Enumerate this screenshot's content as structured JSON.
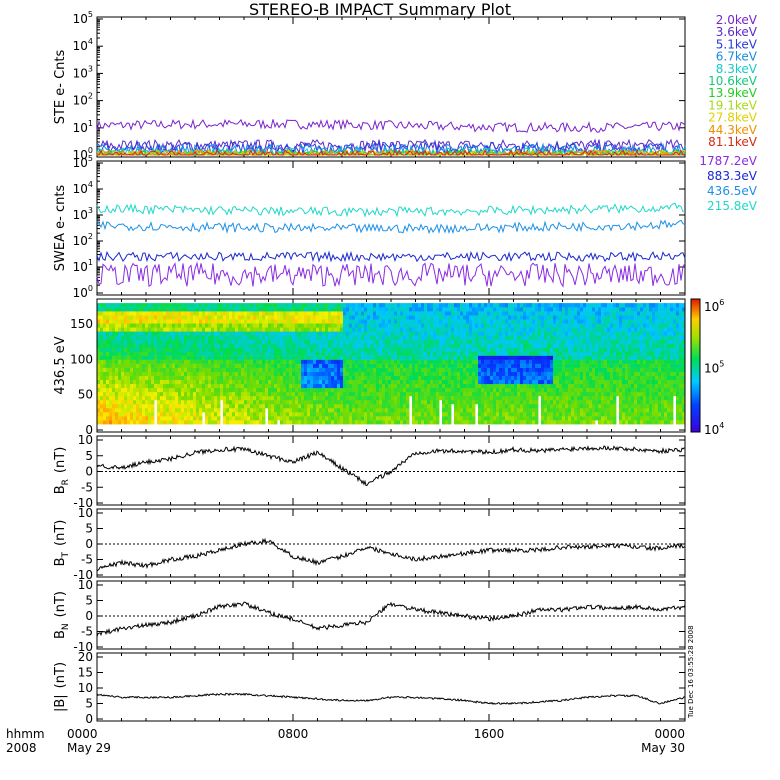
{
  "title": "STEREO-B IMPACT Summary Plot",
  "footer": {
    "unit_label": "hhmm",
    "year": "2008",
    "ticks": [
      {
        "time": "0000",
        "date": "May 29"
      },
      {
        "time": "0800",
        "date": ""
      },
      {
        "time": "1600",
        "date": ""
      },
      {
        "time": "0000",
        "date": "May 30"
      }
    ],
    "timestamp": "Tue Dec 16 03:55:28 2008"
  },
  "chart_data": [
    {
      "type": "line",
      "id": "ste",
      "ylabel": "STE e- Cnts",
      "yscale": "log",
      "ylim": [
        1,
        100000
      ],
      "yticks": [
        {
          "exp": "0"
        },
        {
          "exp": "1"
        },
        {
          "exp": "2"
        },
        {
          "exp": "3"
        },
        {
          "exp": "4"
        },
        {
          "exp": "5"
        }
      ],
      "series": [
        {
          "name": "2.0keV",
          "color": "#7a22cc",
          "level": 12
        },
        {
          "name": "3.6keV",
          "color": "#5a2ac8",
          "level": 2.2
        },
        {
          "name": "5.1keV",
          "color": "#2a3ae0",
          "level": 1.8
        },
        {
          "name": "6.7keV",
          "color": "#1c8ae0",
          "level": 1.5
        },
        {
          "name": "8.3keV",
          "color": "#19c8c8",
          "level": 1.2
        },
        {
          "name": "10.6keV",
          "color": "#17c77e",
          "level": 1.0
        },
        {
          "name": "13.9keV",
          "color": "#22cc22",
          "level": 1.0
        },
        {
          "name": "19.1keV",
          "color": "#a8d815",
          "level": 1.0
        },
        {
          "name": "27.8keV",
          "color": "#e0d000",
          "level": 1.0
        },
        {
          "name": "44.3keV",
          "color": "#f09000",
          "level": 1.0
        },
        {
          "name": "81.1keV",
          "color": "#d42a18",
          "level": 1.0
        }
      ]
    },
    {
      "type": "line",
      "id": "swea",
      "ylabel": "SWEA e- cnts",
      "yscale": "log",
      "ylim": [
        1,
        100000
      ],
      "yticks": [
        {
          "exp": "0"
        },
        {
          "exp": "1"
        },
        {
          "exp": "2"
        },
        {
          "exp": "3"
        },
        {
          "exp": "4"
        },
        {
          "exp": "5"
        }
      ],
      "series": [
        {
          "name": "1787.2eV",
          "color": "#8a2be2",
          "level": 5
        },
        {
          "name": "883.3eV",
          "color": "#1a28cc",
          "level": 25
        },
        {
          "name": "436.5eV",
          "color": "#1e90e6",
          "level": 400
        },
        {
          "name": "215.8eV",
          "color": "#20d8c8",
          "level": 1800
        }
      ]
    },
    {
      "type": "heatmap",
      "id": "pad",
      "ylabel": "436.5 eV",
      "ylim": [
        0,
        180
      ],
      "yticks": [
        "0",
        "50",
        "100",
        "150"
      ],
      "colorbar": {
        "scale": "log",
        "range": [
          10000,
          1000000
        ],
        "labels": [
          {
            "exp": "4"
          },
          {
            "exp": "5"
          },
          {
            "exp": "6"
          }
        ]
      }
    },
    {
      "type": "line",
      "id": "br",
      "ylabel": "B",
      "ylabel_sub": "R",
      "ylabel_unit": "(nT)",
      "ylim": [
        -10,
        10
      ],
      "yticks": [
        "-10",
        "-5",
        "0",
        "5",
        "10"
      ],
      "x": [
        0,
        1,
        2,
        3,
        4,
        5,
        6,
        7,
        8,
        9,
        10,
        11,
        12,
        13,
        14,
        15,
        16,
        17,
        18,
        19,
        20,
        21,
        22,
        23,
        24
      ],
      "values": [
        2,
        1,
        3,
        4,
        6,
        7,
        7,
        5,
        3,
        6,
        1,
        -4,
        0,
        6,
        6.5,
        6.5,
        6,
        7,
        6.5,
        7,
        7.5,
        7.5,
        7,
        6.5,
        7
      ]
    },
    {
      "type": "line",
      "id": "bt",
      "ylabel": "B",
      "ylabel_sub": "T",
      "ylabel_unit": "(nT)",
      "ylim": [
        -10,
        10
      ],
      "yticks": [
        "-10",
        "-5",
        "0",
        "5",
        "10"
      ],
      "x": [
        0,
        1,
        2,
        3,
        4,
        5,
        6,
        7,
        8,
        9,
        10,
        11,
        12,
        13,
        14,
        15,
        16,
        17,
        18,
        19,
        20,
        21,
        22,
        23,
        24
      ],
      "values": [
        -8,
        -6,
        -7,
        -5,
        -4,
        -2,
        0,
        1,
        -4,
        -6,
        -4,
        -1,
        -3,
        -5,
        -4,
        -3,
        -2,
        -2,
        -2,
        -1,
        -1,
        -0.5,
        -1,
        -1.5,
        -0.5
      ]
    },
    {
      "type": "line",
      "id": "bn",
      "ylabel": "B",
      "ylabel_sub": "N",
      "ylabel_unit": "(nT)",
      "ylim": [
        -10,
        10
      ],
      "yticks": [
        "-10",
        "-5",
        "0",
        "5",
        "10"
      ],
      "x": [
        0,
        1,
        2,
        3,
        4,
        5,
        6,
        7,
        8,
        9,
        10,
        11,
        12,
        13,
        14,
        15,
        16,
        17,
        18,
        19,
        20,
        21,
        22,
        23,
        24
      ],
      "values": [
        -6,
        -4,
        -3,
        -2,
        0,
        3,
        4,
        1,
        -1,
        -4,
        -3,
        -2,
        4,
        2,
        1,
        0,
        -1,
        0,
        2,
        2,
        3,
        2.5,
        3,
        2,
        3
      ]
    },
    {
      "type": "line",
      "id": "bmag",
      "ylabel": "|B|",
      "ylabel_unit": "(nT)",
      "ylim": [
        0,
        20
      ],
      "yticks": [
        "0",
        "5",
        "10",
        "15",
        "20"
      ],
      "x": [
        0,
        1,
        2,
        3,
        4,
        5,
        6,
        7,
        8,
        9,
        10,
        11,
        12,
        13,
        14,
        15,
        16,
        17,
        18,
        19,
        20,
        21,
        22,
        23,
        24
      ],
      "values": [
        8,
        7,
        7,
        7,
        7.5,
        8,
        8,
        7.5,
        7,
        6.5,
        6,
        6,
        7,
        7,
        6.5,
        6,
        5,
        5,
        5.5,
        6,
        7,
        7.5,
        7.5,
        5,
        7
      ]
    }
  ]
}
